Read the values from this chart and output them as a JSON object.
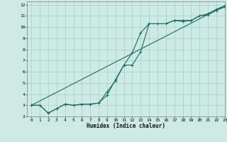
{
  "xlabel": "Humidex (Indice chaleur)",
  "xlim": [
    -0.5,
    23
  ],
  "ylim": [
    2,
    12.3
  ],
  "xticks": [
    0,
    1,
    2,
    3,
    4,
    5,
    6,
    7,
    8,
    9,
    10,
    11,
    12,
    13,
    14,
    15,
    16,
    17,
    18,
    19,
    20,
    21,
    22,
    23
  ],
  "yticks": [
    2,
    3,
    4,
    5,
    6,
    7,
    8,
    9,
    10,
    11,
    12
  ],
  "bg_color": "#ceeae5",
  "grid_color": "#a8ccc8",
  "grid_color2": "#c0deda",
  "line_color": "#1a6e60",
  "line1_x": [
    0,
    1,
    2,
    3,
    4,
    5,
    6,
    7,
    8,
    9,
    10,
    11,
    12,
    13,
    14,
    15,
    16,
    17,
    18,
    19,
    20,
    21,
    22,
    23
  ],
  "line1_y": [
    3.0,
    3.0,
    2.3,
    2.7,
    3.1,
    3.0,
    3.1,
    3.1,
    3.2,
    3.9,
    5.3,
    6.6,
    6.6,
    7.8,
    10.3,
    10.3,
    10.3,
    10.6,
    10.6,
    10.6,
    11.0,
    11.2,
    11.6,
    11.9
  ],
  "line2_x": [
    0,
    1,
    2,
    3,
    4,
    5,
    6,
    7,
    8,
    9,
    10,
    11,
    12,
    13,
    14,
    15,
    16,
    17,
    18,
    19,
    20,
    21,
    22,
    23
  ],
  "line2_y": [
    3.0,
    3.0,
    2.3,
    2.7,
    3.1,
    3.0,
    3.1,
    3.1,
    3.2,
    4.2,
    5.2,
    6.6,
    7.7,
    9.5,
    10.3,
    10.3,
    10.3,
    10.6,
    10.5,
    10.6,
    11.0,
    11.1,
    11.5,
    11.8
  ],
  "line3_x": [
    0,
    23
  ],
  "line3_y": [
    3.0,
    11.9
  ]
}
